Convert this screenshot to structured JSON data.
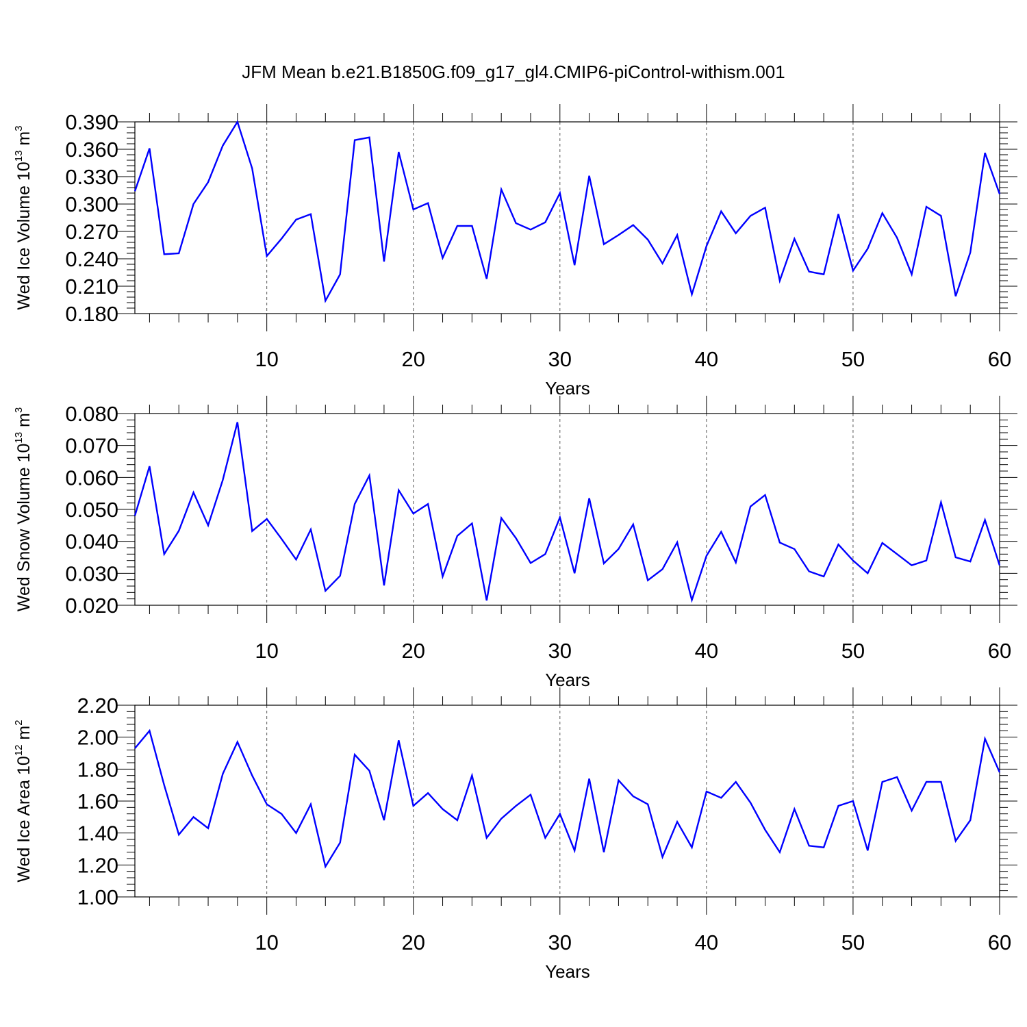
{
  "title": "JFM Mean b.e21.B1850G.f09_g17_gl4.CMIP6-piControl-withism.001",
  "chart_data": [
    {
      "type": "line",
      "title": "",
      "xlabel": "Years",
      "ylabel_parts": [
        "Wed Ice Volume 10",
        "13",
        " m",
        "3"
      ],
      "xlim": [
        1,
        60
      ],
      "ylim": [
        0.18,
        0.39
      ],
      "yticks": [
        "0.180",
        "0.210",
        "0.240",
        "0.270",
        "0.300",
        "0.330",
        "0.360",
        "0.390"
      ],
      "xticks": [
        "10",
        "20",
        "30",
        "40",
        "50",
        "60"
      ],
      "color": "#0000ff",
      "series": [
        {
          "x": [
            1,
            2,
            3,
            4,
            5,
            6,
            7,
            8,
            9,
            10,
            11,
            12,
            13,
            14,
            15,
            16,
            17,
            18,
            19,
            20,
            21,
            22,
            23,
            24,
            25,
            26,
            27,
            28,
            29,
            30,
            31,
            32,
            33,
            34,
            35,
            36,
            37,
            38,
            39,
            40,
            41,
            42,
            43,
            44,
            45,
            46,
            47,
            48,
            49,
            50,
            51,
            52,
            53,
            54,
            55,
            56,
            57,
            58,
            59,
            60
          ],
          "values": [
            0.314,
            0.361,
            0.245,
            0.246,
            0.3,
            0.324,
            0.364,
            0.39,
            0.339,
            0.243,
            0.262,
            0.283,
            0.289,
            0.194,
            0.223,
            0.37,
            0.373,
            0.237,
            0.357,
            0.294,
            0.301,
            0.241,
            0.276,
            0.276,
            0.218,
            0.316,
            0.279,
            0.272,
            0.28,
            0.312,
            0.233,
            0.331,
            0.256,
            0.266,
            0.277,
            0.261,
            0.235,
            0.266,
            0.201,
            0.254,
            0.292,
            0.268,
            0.287,
            0.296,
            0.216,
            0.262,
            0.226,
            0.223,
            0.289,
            0.227,
            0.251,
            0.29,
            0.263,
            0.223,
            0.297,
            0.287,
            0.199,
            0.247,
            0.356,
            0.311
          ]
        }
      ]
    },
    {
      "type": "line",
      "title": "",
      "xlabel": "Years",
      "ylabel_parts": [
        "Wed Snow Volume 10",
        "13",
        " m",
        "3"
      ],
      "xlim": [
        1,
        60
      ],
      "ylim": [
        0.02,
        0.08
      ],
      "yticks": [
        "0.020",
        "0.030",
        "0.040",
        "0.050",
        "0.060",
        "0.070",
        "0.080"
      ],
      "xticks": [
        "10",
        "20",
        "30",
        "40",
        "50",
        "60"
      ],
      "color": "#0000ff",
      "series": [
        {
          "x": [
            1,
            2,
            3,
            4,
            5,
            6,
            7,
            8,
            9,
            10,
            11,
            12,
            13,
            14,
            15,
            16,
            17,
            18,
            19,
            20,
            21,
            22,
            23,
            24,
            25,
            26,
            27,
            28,
            29,
            30,
            31,
            32,
            33,
            34,
            35,
            36,
            37,
            38,
            39,
            40,
            41,
            42,
            43,
            44,
            45,
            46,
            47,
            48,
            49,
            50,
            51,
            52,
            53,
            54,
            55,
            56,
            57,
            58,
            59,
            60
          ],
          "values": [
            0.048,
            0.0635,
            0.036,
            0.0433,
            0.0553,
            0.045,
            0.0592,
            0.0773,
            0.0432,
            0.047,
            0.0408,
            0.0343,
            0.0437,
            0.0245,
            0.0292,
            0.0517,
            0.0606,
            0.0262,
            0.056,
            0.0487,
            0.0517,
            0.029,
            0.0417,
            0.0456,
            0.0215,
            0.0473,
            0.041,
            0.0332,
            0.036,
            0.0475,
            0.03,
            0.0535,
            0.0331,
            0.0376,
            0.0453,
            0.0278,
            0.0313,
            0.0397,
            0.0216,
            0.0355,
            0.043,
            0.0334,
            0.0509,
            0.0545,
            0.0396,
            0.0376,
            0.0306,
            0.029,
            0.039,
            0.034,
            0.03,
            0.0395,
            0.036,
            0.0325,
            0.034,
            0.0522,
            0.035,
            0.0337,
            0.0467,
            0.0325
          ]
        }
      ]
    },
    {
      "type": "line",
      "title": "",
      "xlabel": "Years",
      "ylabel_parts": [
        "Wed Ice Area 10",
        "12",
        " m",
        "2"
      ],
      "xlim": [
        1,
        60
      ],
      "ylim": [
        1.0,
        2.2
      ],
      "yticks": [
        "1.00",
        "1.20",
        "1.40",
        "1.60",
        "1.80",
        "2.00",
        "2.20"
      ],
      "xticks": [
        "10",
        "20",
        "30",
        "40",
        "50",
        "60"
      ],
      "color": "#0000ff",
      "series": [
        {
          "x": [
            1,
            2,
            3,
            4,
            5,
            6,
            7,
            8,
            9,
            10,
            11,
            12,
            13,
            14,
            15,
            16,
            17,
            18,
            19,
            20,
            21,
            22,
            23,
            24,
            25,
            26,
            27,
            28,
            29,
            30,
            31,
            32,
            33,
            34,
            35,
            36,
            37,
            38,
            39,
            40,
            41,
            42,
            43,
            44,
            45,
            46,
            47,
            48,
            49,
            50,
            51,
            52,
            53,
            54,
            55,
            56,
            57,
            58,
            59,
            60
          ],
          "values": [
            1.93,
            2.04,
            1.7,
            1.39,
            1.5,
            1.43,
            1.77,
            1.97,
            1.76,
            1.58,
            1.52,
            1.4,
            1.58,
            1.19,
            1.34,
            1.89,
            1.79,
            1.48,
            1.98,
            1.57,
            1.65,
            1.55,
            1.48,
            1.76,
            1.37,
            1.49,
            1.57,
            1.64,
            1.37,
            1.52,
            1.29,
            1.74,
            1.28,
            1.73,
            1.63,
            1.58,
            1.25,
            1.47,
            1.31,
            1.66,
            1.62,
            1.72,
            1.59,
            1.42,
            1.28,
            1.55,
            1.32,
            1.31,
            1.57,
            1.6,
            1.29,
            1.72,
            1.75,
            1.54,
            1.72,
            1.72,
            1.35,
            1.48,
            1.99,
            1.78
          ]
        }
      ]
    }
  ]
}
